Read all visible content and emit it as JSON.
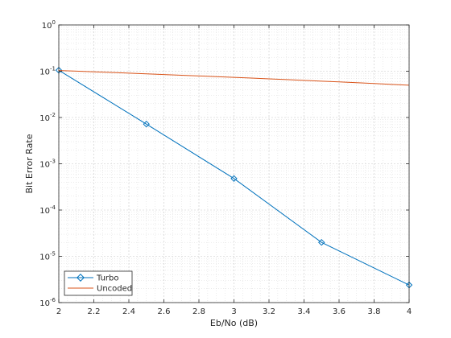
{
  "chart_data": {
    "type": "line",
    "xlabel": "Eb/No (dB)",
    "ylabel": "Bit Error Rate",
    "xlim": [
      2,
      4
    ],
    "ylim": [
      1e-06,
      1
    ],
    "yscale": "log",
    "grid": true,
    "minor_grid": true,
    "legend_placement": "bottom-left",
    "x_ticks": [
      "2",
      "2.2",
      "2.4",
      "2.6",
      "2.8",
      "3",
      "3.2",
      "3.4",
      "3.6",
      "3.8",
      "4"
    ],
    "y_ticks": [
      {
        "base": "10",
        "exp": "-6"
      },
      {
        "base": "10",
        "exp": "-5"
      },
      {
        "base": "10",
        "exp": "-4"
      },
      {
        "base": "10",
        "exp": "-3"
      },
      {
        "base": "10",
        "exp": "-2"
      },
      {
        "base": "10",
        "exp": "-1"
      },
      {
        "base": "10",
        "exp": "0"
      }
    ],
    "series": [
      {
        "name": "Turbo",
        "color": "#0072bd",
        "marker": "diamond",
        "x": [
          2,
          2.5,
          3,
          3.5,
          4
        ],
        "y": [
          0.105,
          0.0072,
          0.00048,
          2e-05,
          2.4e-06
        ]
      },
      {
        "name": "Uncoded",
        "color": "#d95319",
        "marker": "none",
        "x": [
          2,
          2.1,
          2.2,
          2.3,
          2.4,
          2.5,
          2.6,
          2.7,
          2.8,
          2.9,
          3,
          3.1,
          3.2,
          3.3,
          3.4,
          3.5,
          3.6,
          3.7,
          3.8,
          3.9,
          4
        ],
        "y": [
          0.1035,
          0.1003,
          0.0971,
          0.094,
          0.0909,
          0.0879,
          0.0849,
          0.082,
          0.0792,
          0.0764,
          0.0736,
          0.071,
          0.0684,
          0.0659,
          0.0634,
          0.061,
          0.0587,
          0.0564,
          0.0542,
          0.052,
          0.0499
        ]
      }
    ]
  }
}
